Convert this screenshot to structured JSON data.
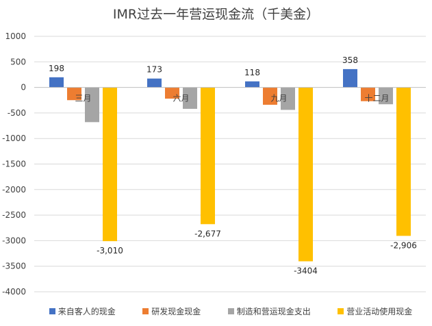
{
  "chart_data": {
    "type": "bar",
    "title": "IMR过去一年营运现金流（千美金）",
    "categories": [
      "三月",
      "六月",
      "九月",
      "十二月"
    ],
    "ylim": [
      -4000,
      1000
    ],
    "yticks": [
      "1000",
      "500",
      "0",
      "-500",
      "-1000",
      "-1500",
      "-2000",
      "-2500",
      "-3000",
      "-3500",
      "-4000"
    ],
    "grid": true,
    "legend_position": "bottom",
    "series": [
      {
        "name": "来自客人的现金",
        "color": "#4472C4",
        "values": [
          198,
          173,
          118,
          358
        ],
        "labels": [
          "198",
          "173",
          "118",
          "358"
        ]
      },
      {
        "name": "研发现金现金",
        "color": "#ED7D31",
        "values": [
          -250,
          -220,
          -340,
          -270
        ],
        "labels": [
          "",
          "",
          "",
          ""
        ]
      },
      {
        "name": "制造和营运现金支出",
        "color": "#A5A5A5",
        "values": [
          -680,
          -420,
          -440,
          -330
        ],
        "labels": [
          "",
          "",
          "",
          ""
        ]
      },
      {
        "name": "营业活动使用现金",
        "color": "#FFC000",
        "values": [
          -3010,
          -2677,
          -3404,
          -2906
        ],
        "labels": [
          "-3,010",
          "-2,677",
          "-3404",
          "-2,906"
        ]
      }
    ]
  }
}
